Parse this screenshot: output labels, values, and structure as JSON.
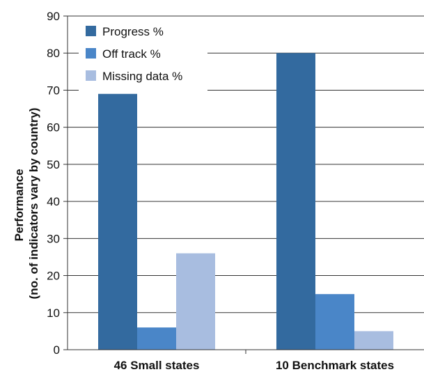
{
  "chart_data": {
    "type": "bar",
    "title": "",
    "xlabel": "",
    "ylabel_line1": "Performance",
    "ylabel_line2": "(no. of indicators vary by country)",
    "categories": [
      "46 Small states",
      "10 Benchmark states"
    ],
    "series": [
      {
        "name": "Progress %",
        "values": [
          69,
          80
        ],
        "color": "#336a9f"
      },
      {
        "name": "Off track %",
        "values": [
          6,
          15
        ],
        "color": "#4a86c8"
      },
      {
        "name": "Missing data %",
        "values": [
          26,
          5
        ],
        "color": "#a8bde0"
      }
    ],
    "ylim": [
      0,
      90
    ],
    "yticks": [
      "0",
      "10",
      "20",
      "30",
      "40",
      "50",
      "60",
      "70",
      "80",
      "90"
    ],
    "grid": true,
    "legend_position": "top-left"
  }
}
